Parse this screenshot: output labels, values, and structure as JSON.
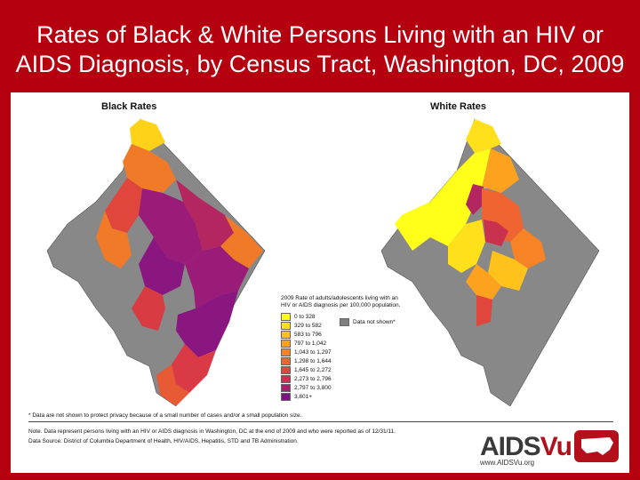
{
  "title_line1": "Rates of Black & White Persons Living with an HIV or",
  "title_line2": "AIDS Diagnosis, by Census Tract, Washington, DC, 2009",
  "maps": {
    "black_title": "Black Rates",
    "white_title": "White Rates"
  },
  "legend": {
    "title_line1": "2009 Rate of adults/adolescents living with an",
    "title_line2": "HIV or AIDS diagnosis per 100,000 population.",
    "not_shown": "Data not shown*",
    "not_shown_color": "#7f7f7f",
    "classes": [
      {
        "label": "0 to 328",
        "color": "#ffff1a"
      },
      {
        "label": "329 to 582",
        "color": "#ffe01a"
      },
      {
        "label": "583 to 796",
        "color": "#ffc21a"
      },
      {
        "label": "797 to 1,042",
        "color": "#fca21e"
      },
      {
        "label": "1,043 to 1,297",
        "color": "#f78326"
      },
      {
        "label": "1,298 to 1,644",
        "color": "#ef6430"
      },
      {
        "label": "1,645 to 2,272",
        "color": "#e0463c"
      },
      {
        "label": "2,273 to 2,796",
        "color": "#c9314f"
      },
      {
        "label": "2,797 to 3,800",
        "color": "#a71f6c"
      },
      {
        "label": "3,801+",
        "color": "#7d1385"
      }
    ]
  },
  "footnote": "* Data are not shown to protect privacy because of a small number of cases and/or a small population size.",
  "note": "Note. Data represent persons living with an HIV or AIDS diagnosis in Washington, DC at the end of 2009 and who were reported as of 12/31/11.",
  "source": "Data Source: District of Columbia Department of Health, HIV/AIDS, Hepatitis, STD and TB Administration.",
  "brand": {
    "aids": "AIDS",
    "vu": "Vu",
    "url": "www.AIDSVu.org",
    "color": "#b4101c"
  }
}
